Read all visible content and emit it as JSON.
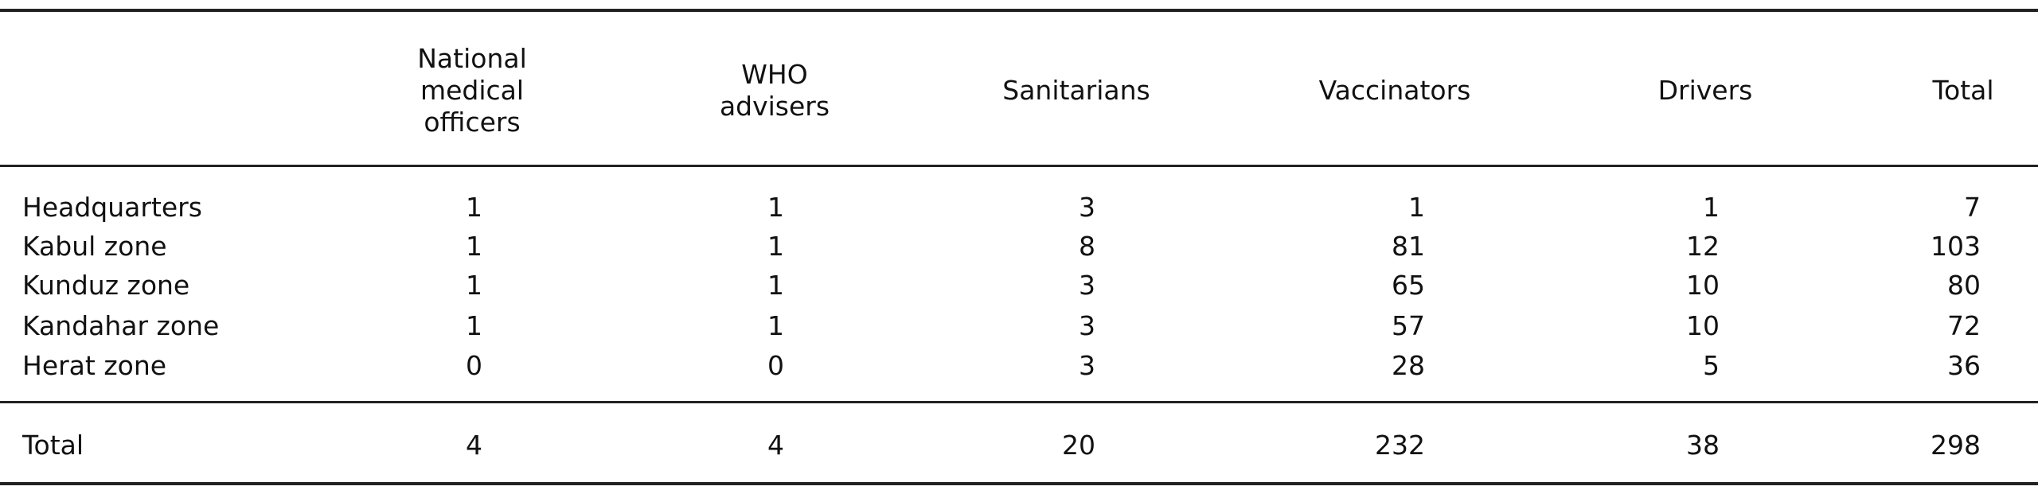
{
  "table": {
    "columns": [
      "National medical officers",
      "WHO advisers",
      "Sanitarians",
      "Vaccinators",
      "Drivers",
      "Total"
    ],
    "rows": [
      {
        "label": "Headquarters",
        "values": [
          1,
          1,
          3,
          1,
          1,
          7
        ]
      },
      {
        "label": "Kabul zone",
        "values": [
          1,
          1,
          8,
          81,
          12,
          103
        ]
      },
      {
        "label": "Kunduz zone",
        "values": [
          1,
          1,
          3,
          65,
          10,
          80
        ]
      },
      {
        "label": "Kandahar zone",
        "values": [
          1,
          1,
          3,
          57,
          10,
          72
        ]
      },
      {
        "label": "Herat zone",
        "values": [
          0,
          0,
          3,
          28,
          5,
          36
        ]
      }
    ],
    "total": {
      "label": "Total",
      "values": [
        4,
        4,
        20,
        232,
        38,
        298
      ]
    }
  }
}
